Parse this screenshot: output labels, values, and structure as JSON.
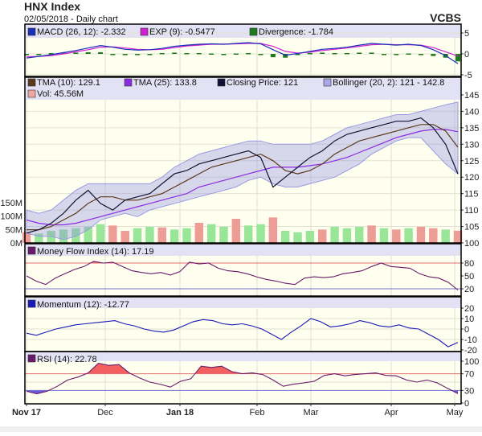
{
  "header": {
    "title": "HNX Index",
    "subtitle": "02/05/2018 - Daily chart",
    "brand": "VCBS"
  },
  "colors": {
    "plot_bg": "#fffff0",
    "header_bg": "#e2e2f4",
    "up": "#99e699",
    "down": "#ee9c96",
    "overbought": "#f26060",
    "oversold": "#6a5ad8"
  },
  "chart_data": [
    {
      "type": "line",
      "panel": "macd",
      "legend": {
        "macd": "MACD (26, 12): -2.332",
        "exp": "EXP (9): -0.5477",
        "divergence": "Divergence: -1.784"
      },
      "legend_colors": {
        "macd": "#1a2fb8",
        "exp": "#d020d0",
        "divergence": "#1f7a1f"
      },
      "ylim": [
        -6,
        6
      ],
      "yticks": [
        "5",
        "0",
        "-5"
      ],
      "ytick_values": [
        5,
        0,
        -5
      ],
      "series": [
        {
          "key": "macd",
          "values": [
            -1,
            -0.6,
            -0.2,
            0.3,
            0.8,
            1.4,
            2,
            1.6,
            1.1,
            0.9,
            1,
            1.3,
            1.8,
            2.1,
            2.3,
            2.4,
            2.3,
            2.5,
            2.7,
            2.4,
            1,
            -0.3,
            0.1,
            0.6,
            1.1,
            1.3,
            1.6,
            2.1,
            2.5,
            2.3,
            2.1,
            2.3,
            2,
            1,
            -0.4,
            -2.332
          ]
        },
        {
          "key": "exp",
          "values": [
            -0.7,
            -0.6,
            -0.4,
            0,
            0.5,
            1,
            1.6,
            1.7,
            1.4,
            1.1,
            1,
            1.1,
            1.5,
            1.9,
            2.1,
            2.3,
            2.3,
            2.4,
            2.5,
            2.5,
            1.8,
            0.6,
            0.2,
            0.4,
            0.8,
            1.1,
            1.4,
            1.8,
            2.2,
            2.3,
            2.2,
            2.2,
            2.1,
            1.5,
            0.5,
            -0.5477
          ]
        },
        {
          "key": "divergence",
          "values": [
            -0.3,
            0,
            0.2,
            0.3,
            0.3,
            0.4,
            0.4,
            -0.1,
            -0.3,
            -0.2,
            0,
            0.2,
            0.3,
            0.2,
            0.2,
            0.1,
            0,
            0.1,
            0.2,
            -0.1,
            -0.8,
            -0.9,
            -0.1,
            0.2,
            0.3,
            0.2,
            0.2,
            0.3,
            0.3,
            0,
            -0.1,
            0.1,
            -0.1,
            -0.5,
            -0.9,
            -1.784
          ]
        }
      ]
    },
    {
      "type": "line",
      "panel": "price",
      "legend": {
        "tma10": "TMA (10): 129.1",
        "tma25": "TMA (25): 133.8",
        "close": "Closing Price: 121",
        "bollinger": "Bollinger (20, 2): 121 - 142.8",
        "volume": "Vol: 45.56M"
      },
      "legend_colors": {
        "tma10": "#5a3a1a",
        "tma25": "#8a2be2",
        "close": "#111133",
        "bollinger": "#a8a8e8",
        "volume": "#eea8a0"
      },
      "ylim": [
        100,
        145
      ],
      "yticks": [
        "145",
        "140",
        "135",
        "130",
        "125",
        "120",
        "115",
        "110",
        "105",
        "100"
      ],
      "ytick_values": [
        145,
        140,
        135,
        130,
        125,
        120,
        115,
        110,
        105,
        100
      ],
      "volume_ticks": [
        "150M",
        "100M",
        "50M",
        "0M"
      ],
      "volume_tick_values": [
        150,
        100,
        50,
        0
      ],
      "close": [
        103,
        104,
        106,
        109,
        113,
        116,
        112,
        110,
        113,
        114,
        115,
        118,
        121,
        122,
        124,
        125,
        126,
        127,
        128,
        126,
        117,
        120,
        123,
        126,
        128,
        131,
        133,
        134,
        135,
        136,
        137,
        137,
        138,
        135,
        130,
        121
      ],
      "tma10": [
        104,
        104,
        105,
        107,
        109,
        112,
        114,
        114,
        113,
        113,
        114,
        115,
        117,
        119,
        121,
        123,
        124,
        125,
        126,
        127,
        125,
        122,
        121,
        122,
        124,
        127,
        129,
        131,
        132,
        133,
        134,
        135,
        136,
        136,
        134,
        129.1
      ],
      "tma25": [
        107,
        106,
        105.5,
        105.5,
        106,
        107,
        108,
        109,
        110,
        111,
        112,
        113,
        114,
        115,
        117,
        118,
        119,
        120,
        121,
        122,
        123,
        123,
        123,
        123.5,
        124,
        125,
        126,
        127.5,
        129,
        130.5,
        132,
        133,
        134,
        134.5,
        134.5,
        133.8
      ],
      "bollinger_upper": [
        110,
        109,
        110,
        113,
        116,
        118,
        118,
        118,
        118,
        118,
        118,
        120,
        123,
        125,
        127,
        128,
        129,
        130,
        131,
        131,
        130,
        130,
        130,
        130,
        131,
        133,
        135,
        136,
        137,
        138,
        139,
        139,
        140,
        141,
        142,
        142.8
      ],
      "bollinger_lower": [
        103,
        102,
        102,
        101,
        102,
        104,
        107,
        108,
        109,
        108,
        110,
        111,
        112,
        113,
        114,
        115,
        116,
        117,
        119,
        120,
        118,
        117,
        117,
        118,
        119,
        120,
        122,
        124,
        127,
        129,
        131,
        132,
        132,
        128,
        124,
        121
      ],
      "volume_m": [
        40,
        35,
        45,
        50,
        55,
        60,
        70,
        65,
        45,
        55,
        60,
        58,
        50,
        55,
        75,
        70,
        60,
        90,
        65,
        70,
        95,
        45,
        40,
        45,
        50,
        60,
        55,
        60,
        65,
        55,
        50,
        55,
        60,
        55,
        50,
        45.56
      ],
      "volume_up": [
        false,
        true,
        true,
        true,
        true,
        true,
        true,
        false,
        false,
        true,
        true,
        false,
        true,
        true,
        false,
        true,
        true,
        false,
        true,
        true,
        false,
        true,
        true,
        true,
        false,
        true,
        true,
        true,
        false,
        true,
        false,
        true,
        false,
        false,
        true,
        false
      ]
    },
    {
      "type": "line",
      "panel": "mfi",
      "legend": {
        "mfi": "Money Flow Index (14): 17.19"
      },
      "legend_colors": {
        "mfi": "#6a1a6a"
      },
      "ylim": [
        0,
        100
      ],
      "yticks": [
        "80",
        "50",
        "20"
      ],
      "ytick_values": [
        80,
        50,
        20
      ],
      "overbought": 80,
      "oversold": 20,
      "values": [
        50,
        38,
        30,
        45,
        55,
        65,
        72,
        84,
        80,
        82,
        72,
        62,
        58,
        55,
        58,
        52,
        60,
        82,
        78,
        80,
        68,
        62,
        60,
        55,
        48,
        42,
        38,
        33,
        30,
        45,
        48,
        46,
        48,
        55,
        58,
        62,
        72,
        80,
        72,
        70,
        68,
        55,
        48,
        45,
        35,
        17.19
      ]
    },
    {
      "type": "line",
      "panel": "momentum",
      "legend": {
        "momentum": "Momentum (12): -12.77"
      },
      "legend_colors": {
        "momentum": "#1a1ab8"
      },
      "ylim": [
        -20,
        20
      ],
      "yticks": [
        "20",
        "10",
        "0",
        "-10",
        "-20"
      ],
      "ytick_values": [
        20,
        10,
        0,
        -10,
        -20
      ],
      "values": [
        -4,
        -6,
        -3,
        0,
        2,
        4,
        5,
        6,
        7,
        8,
        5,
        3,
        0,
        -2,
        -3,
        -1,
        3,
        7,
        9,
        8,
        5,
        4,
        5,
        3,
        0,
        -5,
        -10,
        -3,
        3,
        10,
        7,
        2,
        3,
        5,
        8,
        6,
        3,
        2,
        4,
        1,
        0,
        -5,
        -10,
        -17,
        -12.77
      ]
    },
    {
      "type": "line",
      "panel": "rsi",
      "legend": {
        "rsi": "RSI (14): 22.78"
      },
      "legend_colors": {
        "rsi": "#6a1a6a"
      },
      "ylim": [
        0,
        100
      ],
      "yticks": [
        "100",
        "70",
        "30",
        "0"
      ],
      "ytick_values": [
        100,
        70,
        30,
        0
      ],
      "overbought": 70,
      "oversold": 30,
      "values": [
        28,
        22,
        28,
        40,
        55,
        62,
        72,
        95,
        90,
        92,
        72,
        60,
        50,
        45,
        38,
        52,
        58,
        88,
        85,
        88,
        75,
        70,
        72,
        68,
        55,
        40,
        45,
        48,
        52,
        66,
        70,
        65,
        68,
        70,
        72,
        66,
        65,
        55,
        50,
        55,
        48,
        35,
        22.78
      ]
    }
  ],
  "xaxis": {
    "labels": [
      "Nov 17",
      "Dec",
      "Jan 18",
      "Feb",
      "Mar",
      "Apr",
      "May"
    ],
    "bold": [
      true,
      false,
      true,
      false,
      false,
      false,
      false
    ]
  }
}
